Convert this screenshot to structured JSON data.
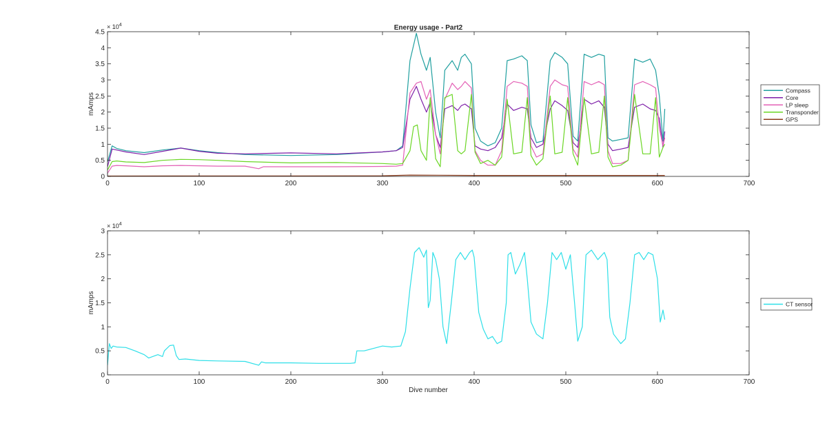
{
  "chart_data": [
    {
      "type": "line",
      "title": "Energy usage - Part2",
      "xlabel": "",
      "ylabel": "mAmps",
      "y_exponent_label": "× 10",
      "y_exponent_power": "4",
      "xlim": [
        0,
        700
      ],
      "ylim": [
        0,
        45000
      ],
      "xticks": [
        0,
        100,
        200,
        300,
        400,
        500,
        600,
        700
      ],
      "yticks": [
        0,
        5000,
        10000,
        15000,
        20000,
        25000,
        30000,
        35000,
        40000,
        45000
      ],
      "xtick_labels": [
        "0",
        "100",
        "200",
        "300",
        "400",
        "500",
        "600",
        "700"
      ],
      "ytick_labels": [
        "0",
        "0.5",
        "1",
        "1.5",
        "2",
        "2.5",
        "3",
        "3.5",
        "4",
        "4.5"
      ],
      "grid": false,
      "legend_position": "outside-right",
      "series": [
        {
          "name": "Compass",
          "color": "#1f9f9f",
          "x": [
            0,
            5,
            10,
            20,
            40,
            60,
            80,
            100,
            120,
            150,
            200,
            250,
            300,
            315,
            322,
            330,
            337,
            342,
            348,
            352,
            358,
            363,
            368,
            376,
            382,
            386,
            390,
            397,
            401,
            407,
            415,
            423,
            430,
            436,
            443,
            452,
            458,
            462,
            468,
            475,
            483,
            488,
            496,
            502,
            508,
            513,
            520,
            528,
            536,
            542,
            546,
            551,
            560,
            568,
            575,
            584,
            592,
            598,
            602,
            606,
            608
          ],
          "y": [
            4500,
            9500,
            8700,
            8000,
            7400,
            8200,
            8800,
            8000,
            7400,
            6800,
            6500,
            6800,
            7600,
            8000,
            9500,
            36000,
            44500,
            38000,
            33000,
            37000,
            20000,
            12000,
            33000,
            36000,
            33000,
            37000,
            38000,
            35000,
            15000,
            11000,
            9500,
            10500,
            15000,
            36000,
            36500,
            37500,
            36000,
            16000,
            10500,
            11000,
            36000,
            38500,
            37000,
            35000,
            12500,
            11000,
            38000,
            37000,
            38000,
            37500,
            12000,
            11000,
            11500,
            12000,
            36500,
            35500,
            36500,
            33000,
            25000,
            11000,
            21000
          ]
        },
        {
          "name": "Core",
          "color": "#7e1fa8",
          "x": [
            0,
            5,
            10,
            20,
            40,
            60,
            80,
            100,
            120,
            150,
            200,
            250,
            300,
            315,
            322,
            330,
            337,
            342,
            348,
            352,
            358,
            363,
            368,
            376,
            382,
            386,
            390,
            397,
            401,
            407,
            415,
            423,
            430,
            436,
            443,
            452,
            458,
            462,
            468,
            475,
            483,
            488,
            496,
            502,
            508,
            513,
            520,
            528,
            536,
            542,
            546,
            551,
            560,
            568,
            575,
            584,
            592,
            598,
            602,
            606,
            608
          ],
          "y": [
            3000,
            8500,
            8200,
            7600,
            6800,
            7800,
            8800,
            7800,
            7200,
            7000,
            7300,
            7000,
            7600,
            8000,
            9000,
            24000,
            28000,
            24000,
            20000,
            23000,
            13000,
            9000,
            21000,
            22000,
            20500,
            22000,
            22500,
            21000,
            9500,
            8500,
            8000,
            9000,
            12000,
            22500,
            20500,
            21500,
            21000,
            12000,
            9000,
            10000,
            21000,
            23500,
            22000,
            20500,
            10500,
            9000,
            24000,
            22500,
            23500,
            21500,
            10000,
            8000,
            8500,
            9000,
            21500,
            22500,
            21000,
            20500,
            18000,
            9000,
            14000
          ]
        },
        {
          "name": "LP sleep",
          "color": "#e35fb5",
          "x": [
            0,
            5,
            10,
            20,
            40,
            60,
            80,
            100,
            120,
            150,
            165,
            170,
            200,
            250,
            300,
            315,
            322,
            330,
            337,
            342,
            348,
            352,
            358,
            363,
            368,
            376,
            382,
            386,
            390,
            397,
            401,
            407,
            415,
            423,
            430,
            436,
            443,
            452,
            458,
            462,
            468,
            475,
            483,
            488,
            496,
            502,
            508,
            513,
            520,
            528,
            536,
            542,
            546,
            551,
            560,
            568,
            575,
            584,
            592,
            598,
            602,
            606,
            608
          ],
          "y": [
            1000,
            3200,
            3400,
            3300,
            3000,
            3300,
            3400,
            3300,
            3200,
            3200,
            2400,
            3000,
            3000,
            3000,
            3100,
            3200,
            3500,
            26000,
            29000,
            29500,
            24000,
            27000,
            13000,
            7000,
            24000,
            29000,
            27000,
            28000,
            29500,
            27500,
            8000,
            5000,
            3500,
            3500,
            8000,
            28000,
            29500,
            29000,
            28000,
            9500,
            6000,
            7000,
            28000,
            30000,
            28500,
            28000,
            8500,
            6000,
            29500,
            28500,
            29500,
            28500,
            8000,
            4000,
            4000,
            5000,
            28500,
            29500,
            28500,
            27500,
            15000,
            9500,
            12000
          ]
        },
        {
          "name": "Transponder",
          "color": "#6ad623",
          "x": [
            0,
            5,
            10,
            20,
            40,
            60,
            80,
            100,
            120,
            150,
            200,
            250,
            300,
            315,
            322,
            330,
            334,
            338,
            342,
            348,
            352,
            358,
            363,
            368,
            376,
            382,
            386,
            390,
            397,
            401,
            407,
            415,
            423,
            430,
            436,
            443,
            452,
            458,
            462,
            468,
            475,
            483,
            488,
            496,
            502,
            508,
            513,
            520,
            528,
            536,
            542,
            546,
            551,
            560,
            568,
            575,
            584,
            592,
            598,
            602,
            606,
            608
          ],
          "y": [
            2000,
            4600,
            4800,
            4500,
            4300,
            5000,
            5300,
            5200,
            5000,
            4600,
            4200,
            4300,
            4000,
            3800,
            4000,
            8000,
            15500,
            16000,
            8000,
            5000,
            24500,
            5500,
            3000,
            24500,
            25500,
            8000,
            7000,
            8000,
            25500,
            7500,
            4000,
            5000,
            3500,
            6000,
            24000,
            7000,
            7500,
            24500,
            6500,
            3500,
            5500,
            25000,
            7000,
            7500,
            24500,
            7000,
            3500,
            24500,
            7000,
            7500,
            25000,
            6000,
            3000,
            3500,
            5000,
            25500,
            7000,
            7000,
            24500,
            6000,
            9000,
            10000
          ]
        },
        {
          "name": "GPS",
          "color": "#8b3a1a",
          "x": [
            0,
            100,
            200,
            300,
            330,
            400,
            500,
            608
          ],
          "y": [
            100,
            150,
            150,
            200,
            400,
            300,
            300,
            300
          ]
        }
      ]
    },
    {
      "type": "line",
      "title": "",
      "xlabel": "Dive number",
      "ylabel": "mAmps",
      "y_exponent_label": "× 10",
      "y_exponent_power": "4",
      "xlim": [
        0,
        700
      ],
      "ylim": [
        0,
        30000
      ],
      "xticks": [
        0,
        100,
        200,
        300,
        400,
        500,
        600,
        700
      ],
      "yticks": [
        0,
        5000,
        10000,
        15000,
        20000,
        25000,
        30000
      ],
      "xtick_labels": [
        "0",
        "100",
        "200",
        "300",
        "400",
        "500",
        "600",
        "700"
      ],
      "ytick_labels": [
        "0",
        "0.5",
        "1",
        "1.5",
        "2",
        "2.5",
        "3"
      ],
      "grid": false,
      "legend_position": "outside-right",
      "series": [
        {
          "name": "CT sensor",
          "color": "#2ddfe8",
          "x": [
            0,
            2,
            4,
            6,
            10,
            20,
            30,
            40,
            45,
            55,
            60,
            62,
            68,
            72,
            75,
            78,
            85,
            100,
            120,
            150,
            165,
            168,
            172,
            200,
            230,
            265,
            270,
            272,
            280,
            290,
            300,
            310,
            320,
            325,
            330,
            335,
            340,
            345,
            348,
            350,
            352,
            355,
            358,
            362,
            366,
            370,
            375,
            380,
            385,
            390,
            395,
            398,
            400,
            405,
            410,
            415,
            420,
            425,
            430,
            435,
            437,
            440,
            445,
            450,
            455,
            458,
            462,
            468,
            475,
            480,
            485,
            490,
            495,
            500,
            505,
            510,
            513,
            518,
            522,
            528,
            535,
            542,
            545,
            548,
            552,
            556,
            560,
            565,
            570,
            575,
            580,
            585,
            590,
            595,
            600,
            603,
            606,
            608
          ],
          "y": [
            2000,
            6500,
            5500,
            6000,
            5800,
            5700,
            5000,
            4200,
            3500,
            4200,
            3800,
            5000,
            6100,
            6200,
            4000,
            3200,
            3300,
            3000,
            2900,
            2800,
            2000,
            2700,
            2500,
            2500,
            2400,
            2400,
            2500,
            5000,
            5000,
            5500,
            6000,
            5800,
            6000,
            9000,
            18000,
            25500,
            26500,
            24500,
            26000,
            14000,
            15500,
            25500,
            24000,
            20000,
            10000,
            6500,
            15000,
            24000,
            25500,
            24000,
            25500,
            26000,
            24500,
            13000,
            9500,
            7500,
            8000,
            6500,
            7000,
            15000,
            25000,
            25500,
            21000,
            23000,
            25500,
            20000,
            11000,
            8500,
            7500,
            15000,
            25500,
            24000,
            25500,
            22000,
            25000,
            14000,
            7000,
            10000,
            25000,
            26000,
            24000,
            25500,
            24000,
            12000,
            8500,
            7500,
            6500,
            7500,
            15000,
            25000,
            25500,
            24000,
            25500,
            25000,
            20000,
            11000,
            13500,
            11500
          ]
        }
      ]
    }
  ]
}
